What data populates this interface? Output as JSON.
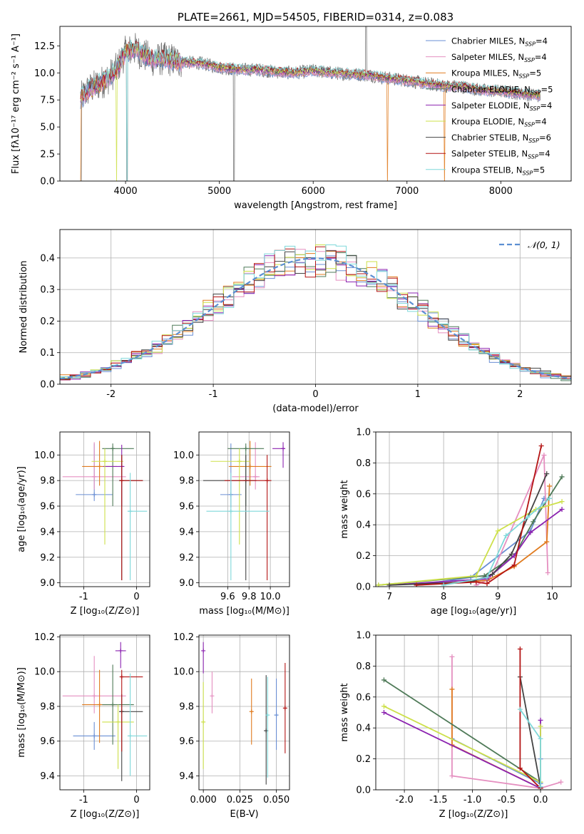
{
  "colors": [
    "#6a8fd4",
    "#e58fc0",
    "#e07b1f",
    "#4f7a58",
    "#8b22b0",
    "#cde04a",
    "#444444",
    "#b41414",
    "#7fd8da"
  ],
  "chart_data": [
    {
      "id": "spectrum",
      "type": "line",
      "title": "PLATE=2661, MJD=54505, FIBERID=0314, z=0.083",
      "xlabel": "wavelength [Angstrom, rest frame]",
      "ylabel": "Flux [fλ10⁻¹⁷ erg cm⁻² s⁻¹ A⁻¹]",
      "xlim": [
        3300,
        8750
      ],
      "ylim": [
        0,
        14.3
      ],
      "xticks": [
        4000,
        5000,
        6000,
        7000,
        8000
      ],
      "yticks": [
        0.0,
        2.5,
        5.0,
        7.5,
        10.0,
        12.5
      ],
      "grid": false,
      "legend_position": "top-right",
      "legend": [
        "Chabrier MILES, N_SSP=4",
        "Salpeter MILES, N_SSP=4",
        "Kroupa MILES, N_SSP=5",
        "Chabrier ELODIE, N_SSP=5",
        "Salpeter ELODIE, N_SSP=4",
        "Kroupa ELODIE, N_SSP=4",
        "Chabrier STELIB, N_SSP=6",
        "Salpeter STELIB, N_SSP=4",
        "Kroupa STELIB, N_SSP=5"
      ],
      "continuum": {
        "x": [
          3520,
          3600,
          3700,
          3800,
          3900,
          4000,
          4100,
          4200,
          4300,
          4400,
          4500,
          4600,
          4800,
          5000,
          5200,
          5400,
          5600,
          5800,
          6000,
          6200,
          6400,
          6600,
          6800,
          7000,
          7200,
          7400,
          7600,
          7800,
          8000,
          8200,
          8400
        ],
        "y": [
          7.6,
          8.4,
          8.9,
          9.4,
          10.3,
          11.9,
          12.2,
          11.6,
          11.2,
          11.3,
          11.2,
          11.0,
          10.9,
          10.5,
          10.3,
          10.3,
          10.1,
          10.0,
          10.2,
          10.0,
          9.9,
          9.8,
          9.5,
          9.3,
          9.0,
          8.8,
          8.7,
          8.4,
          8.3,
          8.1,
          7.9
        ]
      }
    },
    {
      "id": "residuals",
      "type": "histogram",
      "xlabel": "(data-model)/error",
      "ylabel": "Normed distribution",
      "xlim": [
        -2.5,
        2.5
      ],
      "ylim": [
        0,
        0.49
      ],
      "xticks": [
        -2,
        -1,
        0,
        1,
        2
      ],
      "yticks": [
        0.0,
        0.1,
        0.2,
        0.3,
        0.4
      ],
      "grid": true,
      "legend": [
        "𝒩(0, 1)"
      ],
      "legend_position": "top-right",
      "bin_width": 0.1
    },
    {
      "id": "age_vs_Z",
      "type": "errorbar",
      "xlabel": "Z [log₁₀(Z/Z⊙)]",
      "ylabel": "age  [log₁₀(age/yr)]",
      "xlim": [
        -1.45,
        0.25
      ],
      "ylim": [
        8.97,
        10.18
      ],
      "xticks": [
        -1,
        0
      ],
      "yticks": [
        9.0,
        9.2,
        9.4,
        9.6,
        9.8,
        10.0
      ],
      "grid": true,
      "points": [
        {
          "c": 0,
          "x": -0.8,
          "xe": [
            0.35,
            0.35
          ],
          "y": 9.69,
          "ye": [
            0.05,
            0.4
          ]
        },
        {
          "c": 1,
          "x": -0.8,
          "xe": [
            0.6,
            0.6
          ],
          "y": 9.83,
          "ye": [
            0.1,
            0.27
          ]
        },
        {
          "c": 2,
          "x": -0.7,
          "xe": [
            0.33,
            0.33
          ],
          "y": 9.91,
          "ye": [
            0.15,
            0.2
          ]
        },
        {
          "c": 3,
          "x": -0.45,
          "xe": [
            0.2,
            0.4
          ],
          "y": 10.05,
          "ye": [
            0.45,
            0.04
          ]
        },
        {
          "c": 4,
          "x": -0.28,
          "xe": [
            0.35,
            0.05
          ],
          "y": 9.91,
          "ye": [
            0.31,
            0.17
          ]
        },
        {
          "c": 5,
          "x": -0.6,
          "xe": [
            0.25,
            0.35
          ],
          "y": 9.95,
          "ye": [
            0.65,
            0.1
          ]
        },
        {
          "c": 6,
          "x": -0.28,
          "xe": [
            0.05,
            0.4
          ],
          "y": 9.8,
          "ye": [
            0.78,
            0.2
          ]
        },
        {
          "c": 7,
          "x": -0.28,
          "xe": [
            0.02,
            0.4
          ],
          "y": 9.8,
          "ye": [
            0.78,
            0.2
          ]
        },
        {
          "c": 8,
          "x": -0.12,
          "xe": [
            0.05,
            0.32
          ],
          "y": 9.56,
          "ye": [
            0.54,
            0.3
          ]
        }
      ]
    },
    {
      "id": "age_vs_mass",
      "type": "errorbar",
      "xlabel": "mass [log₁₀(M/M⊙)]",
      "ylabel": "",
      "xlim": [
        9.33,
        10.18
      ],
      "ylim": [
        8.97,
        10.18
      ],
      "xticks": [
        9.6,
        9.8,
        10.0
      ],
      "yticks": [
        9.0,
        9.2,
        9.4,
        9.6,
        9.8,
        10.0
      ],
      "grid": true,
      "points": [
        {
          "c": 0,
          "x": 9.63,
          "xe": [
            0.1,
            0.1
          ],
          "y": 9.69,
          "ye": [
            0.1,
            0.4
          ]
        },
        {
          "c": 1,
          "x": 9.86,
          "xe": [
            0.22,
            0.04
          ],
          "y": 9.83,
          "ye": [
            0.1,
            0.27
          ]
        },
        {
          "c": 2,
          "x": 9.81,
          "xe": [
            0.2,
            0.2
          ],
          "y": 9.91,
          "ye": [
            0.15,
            0.2
          ]
        },
        {
          "c": 3,
          "x": 9.77,
          "xe": [
            0.17,
            0.17
          ],
          "y": 10.05,
          "ye": [
            0.45,
            0.04
          ]
        },
        {
          "c": 4,
          "x": 10.12,
          "xe": [
            0.1,
            0.02
          ],
          "y": 10.05,
          "ye": [
            0.15,
            0.05
          ]
        },
        {
          "c": 5,
          "x": 9.71,
          "xe": [
            0.27,
            0.1
          ],
          "y": 9.95,
          "ye": [
            0.65,
            0.1
          ]
        },
        {
          "c": 6,
          "x": 9.77,
          "xe": [
            0.4,
            0.1
          ],
          "y": 9.8,
          "ye": [
            0.78,
            0.2
          ]
        },
        {
          "c": 7,
          "x": 9.97,
          "xe": [
            0.4,
            0.04
          ],
          "y": 9.8,
          "ye": [
            0.78,
            0.2
          ]
        },
        {
          "c": 8,
          "x": 9.63,
          "xe": [
            0.23,
            0.36
          ],
          "y": 9.56,
          "ye": [
            0.54,
            0.3
          ]
        }
      ]
    },
    {
      "id": "weight_vs_age",
      "type": "line",
      "xlabel": "age  [log₁₀(age/yr)]",
      "ylabel": "mass weight",
      "xlim": [
        6.75,
        10.35
      ],
      "ylim": [
        0,
        1.0
      ],
      "xticks": [
        7,
        8,
        9,
        10
      ],
      "yticks": [
        0.0,
        0.2,
        0.4,
        0.6,
        0.8,
        1.0
      ],
      "grid": true,
      "series": [
        {
          "c": 0,
          "x": [
            7.5,
            8.5,
            9.6,
            9.85
          ],
          "y": [
            0.01,
            0.06,
            0.36,
            0.57
          ]
        },
        {
          "c": 1,
          "x": [
            8.6,
            8.85,
            9.85,
            9.92
          ],
          "y": [
            0.01,
            0.05,
            0.85,
            0.09
          ]
        },
        {
          "c": 2,
          "x": [
            7.5,
            8.8,
            9.3,
            9.9,
            9.95
          ],
          "y": [
            0.01,
            0.04,
            0.13,
            0.29,
            0.65
          ]
        },
        {
          "c": 3,
          "x": [
            6.8,
            8.75,
            9.3,
            9.65,
            10.18
          ],
          "y": [
            0.01,
            0.07,
            0.2,
            0.42,
            0.71
          ]
        },
        {
          "c": 4,
          "x": [
            7.0,
            8.8,
            9.3,
            9.6,
            10.18
          ],
          "y": [
            0.01,
            0.05,
            0.2,
            0.35,
            0.5
          ]
        },
        {
          "c": 5,
          "x": [
            6.8,
            8.6,
            9.0,
            9.7,
            10.18
          ],
          "y": [
            0.01,
            0.07,
            0.36,
            0.5,
            0.55
          ]
        },
        {
          "c": 6,
          "x": [
            7.0,
            8.5,
            8.9,
            9.25,
            9.9
          ],
          "y": [
            0.01,
            0.03,
            0.08,
            0.21,
            0.73
          ]
        },
        {
          "c": 7,
          "x": [
            7.5,
            8.6,
            8.8,
            9.3,
            9.8
          ],
          "y": [
            0.01,
            0.03,
            0.02,
            0.14,
            0.91
          ]
        },
        {
          "c": 8,
          "x": [
            8.0,
            8.8,
            9.15,
            9.55,
            9.95
          ],
          "y": [
            0.01,
            0.06,
            0.33,
            0.45,
            0.57
          ]
        }
      ]
    },
    {
      "id": "mass_vs_Z",
      "type": "errorbar",
      "xlabel": "Z [log₁₀(Z/Z⊙)]",
      "ylabel": "mass [log₁₀(M/M⊙)]",
      "xlim": [
        -1.45,
        0.25
      ],
      "ylim": [
        9.32,
        10.21
      ],
      "xticks": [
        -1,
        0
      ],
      "yticks": [
        9.4,
        9.6,
        9.8,
        10.0,
        10.2
      ],
      "grid": true,
      "points": [
        {
          "c": 0,
          "x": -0.8,
          "xe": [
            0.4,
            0.4
          ],
          "y": 9.63,
          "ye": [
            0.08,
            0.08
          ]
        },
        {
          "c": 1,
          "x": -0.8,
          "xe": [
            0.6,
            0.6
          ],
          "y": 9.86,
          "ye": [
            0.1,
            0.23
          ]
        },
        {
          "c": 2,
          "x": -0.7,
          "xe": [
            0.33,
            0.33
          ],
          "y": 9.81,
          "ye": [
            0.22,
            0.2
          ]
        },
        {
          "c": 3,
          "x": -0.45,
          "xe": [
            0.2,
            0.4
          ],
          "y": 9.81,
          "ye": [
            0.23,
            0.23
          ]
        },
        {
          "c": 4,
          "x": -0.3,
          "xe": [
            0.1,
            0.1
          ],
          "y": 10.12,
          "ye": [
            0.1,
            0.05
          ]
        },
        {
          "c": 5,
          "x": -0.35,
          "xe": [
            0.3,
            0.3
          ],
          "y": 9.71,
          "ye": [
            0.27,
            0.1
          ]
        },
        {
          "c": 6,
          "x": -0.28,
          "xe": [
            0.05,
            0.4
          ],
          "y": 9.77,
          "ye": [
            0.4,
            0.1
          ]
        },
        {
          "c": 7,
          "x": -0.28,
          "xe": [
            0.02,
            0.4
          ],
          "y": 9.97,
          "ye": [
            0.43,
            0.04
          ]
        },
        {
          "c": 8,
          "x": -0.12,
          "xe": [
            0.05,
            0.32
          ],
          "y": 9.63,
          "ye": [
            0.23,
            0.36
          ]
        }
      ]
    },
    {
      "id": "mass_vs_EBV",
      "type": "errorbar",
      "xlabel": "E(B-V)",
      "ylabel": "",
      "xlim": [
        -0.003,
        0.059
      ],
      "ylim": [
        9.32,
        10.21
      ],
      "xticks": [
        0.0,
        0.025,
        0.05
      ],
      "yticks": [
        9.4,
        9.6,
        9.8,
        10.0,
        10.2
      ],
      "grid": true,
      "points": [
        {
          "c": 4,
          "x": 0.0,
          "xe": [
            0,
            0
          ],
          "y": 10.12,
          "ye": [
            0.13,
            0.05
          ]
        },
        {
          "c": 5,
          "x": 0.0,
          "xe": [
            0,
            0
          ],
          "y": 9.71,
          "ye": [
            0.27,
            0.23
          ]
        },
        {
          "c": 1,
          "x": 0.006,
          "xe": [
            0,
            0
          ],
          "y": 9.86,
          "ye": [
            0.1,
            0.14
          ]
        },
        {
          "c": 2,
          "x": 0.033,
          "xe": [
            0,
            0
          ],
          "y": 9.77,
          "ye": [
            0.19,
            0.19
          ]
        },
        {
          "c": 6,
          "x": 0.043,
          "xe": [
            0,
            0
          ],
          "y": 9.66,
          "ye": [
            0.31,
            0.32
          ]
        },
        {
          "c": 8,
          "x": 0.044,
          "xe": [
            0,
            0
          ],
          "y": 9.75,
          "ye": [
            0.36,
            0.22
          ]
        },
        {
          "c": 0,
          "x": 0.05,
          "xe": [
            0,
            0
          ],
          "y": 9.75,
          "ye": [
            0.2,
            0.21
          ]
        },
        {
          "c": 7,
          "x": 0.056,
          "xe": [
            0,
            0
          ],
          "y": 9.79,
          "ye": [
            0.26,
            0.26
          ]
        }
      ]
    },
    {
      "id": "weight_vs_Z",
      "type": "line",
      "xlabel": "Z [log₁₀(Z/Z⊙)]",
      "ylabel": "mass weight",
      "xlim": [
        -2.42,
        0.45
      ],
      "ylim": [
        0,
        1.0
      ],
      "xticks": [
        -2.0,
        -1.5,
        -1.0,
        -0.5,
        0.0
      ],
      "yticks": [
        0.0,
        0.2,
        0.4,
        0.6,
        0.8,
        1.0
      ],
      "grid": true,
      "series": [
        {
          "c": 0,
          "x": [
            -1.3,
            0.0,
            0.0
          ],
          "y": [
            0.33,
            0.04,
            0.2
          ]
        },
        {
          "c": 1,
          "x": [
            -1.3,
            -1.3,
            0.0,
            0.3
          ],
          "y": [
            0.86,
            0.09,
            0.01,
            0.05
          ]
        },
        {
          "c": 2,
          "x": [
            -1.3,
            -1.3,
            0.0
          ],
          "y": [
            0.65,
            0.29,
            0.01
          ]
        },
        {
          "c": 3,
          "x": [
            -2.3,
            0.0,
            0.0
          ],
          "y": [
            0.71,
            0.05,
            0.01
          ]
        },
        {
          "c": 4,
          "x": [
            -2.3,
            0.0,
            0.0
          ],
          "y": [
            0.5,
            0.01,
            0.45
          ]
        },
        {
          "c": 5,
          "x": [
            -2.3,
            0.0,
            0.0
          ],
          "y": [
            0.54,
            0.05,
            0.41
          ]
        },
        {
          "c": 6,
          "x": [
            -0.3,
            0.0,
            0.0
          ],
          "y": [
            0.73,
            0.02,
            0.01
          ]
        },
        {
          "c": 7,
          "x": [
            -0.3,
            -0.3,
            0.0
          ],
          "y": [
            0.91,
            0.14,
            0.01
          ]
        },
        {
          "c": 8,
          "x": [
            -0.3,
            0.0,
            0.0
          ],
          "y": [
            0.52,
            0.33,
            0.02
          ]
        }
      ]
    }
  ]
}
